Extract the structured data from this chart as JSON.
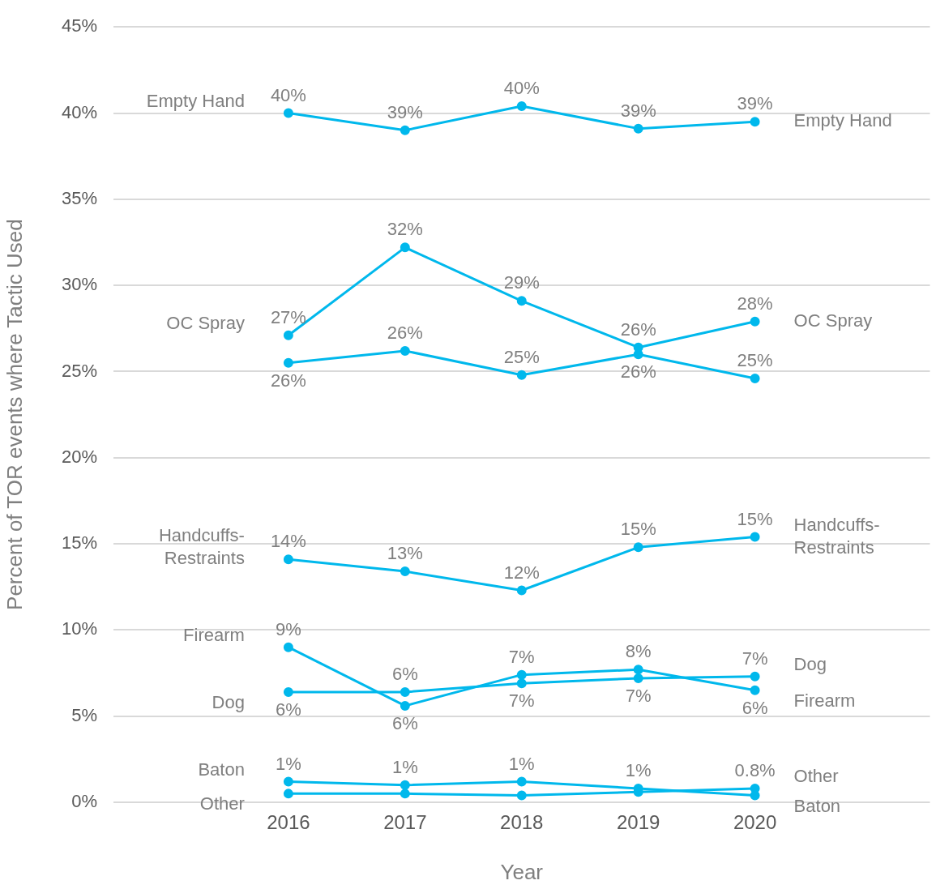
{
  "chart_data": {
    "type": "line",
    "xlabel": "Year",
    "ylabel": "Percent of TOR events where Tactic Used",
    "x": [
      2016,
      2017,
      2018,
      2019,
      2020
    ],
    "xlim": [
      2014.5,
      2021.5
    ],
    "xticks": [
      2016,
      2017,
      2018,
      2019,
      2020
    ],
    "ylim": [
      0,
      45
    ],
    "yticks": [
      {
        "value": 0,
        "label": "0%"
      },
      {
        "value": 5,
        "label": "5%"
      },
      {
        "value": 10,
        "label": "10%"
      },
      {
        "value": 15,
        "label": "15%"
      },
      {
        "value": 20,
        "label": "20%"
      },
      {
        "value": 25,
        "label": "25%"
      },
      {
        "value": 30,
        "label": "30%"
      },
      {
        "value": 35,
        "label": "35%"
      },
      {
        "value": 40,
        "label": "40%"
      },
      {
        "value": 45,
        "label": "45%"
      }
    ],
    "grid": "y",
    "legend": false,
    "marker": "circle",
    "line_style": "solid",
    "series": [
      {
        "name": "Empty Hand",
        "color": "#00b8ec",
        "values": [
          40.0,
          39.0,
          40.4,
          39.1,
          39.5
        ],
        "value_labels": [
          "40%",
          "39%",
          "40%",
          "39%",
          "39%"
        ]
      },
      {
        "name": "OC Spray",
        "color": "#00b8ec",
        "values": [
          27.1,
          32.2,
          29.1,
          26.4,
          27.9
        ],
        "value_labels": [
          "27%",
          "32%",
          "29%",
          "26%",
          "28%"
        ]
      },
      {
        "color": "#00b8ec",
        "values": [
          25.5,
          26.2,
          24.8,
          26.0,
          24.6
        ],
        "value_labels": [
          "26%",
          "26%",
          "25%",
          "26%",
          "25%"
        ]
      },
      {
        "name": "Handcuffs-Restraints",
        "color": "#00b8ec",
        "values": [
          14.1,
          13.4,
          12.3,
          14.8,
          15.4
        ],
        "value_labels": [
          "14%",
          "13%",
          "12%",
          "15%",
          "15%"
        ]
      },
      {
        "name": "Firearm",
        "color": "#00b8ec",
        "values": [
          9.0,
          5.6,
          7.4,
          7.7,
          6.5
        ],
        "value_labels": [
          "9%",
          "6%",
          "7%",
          "8%",
          "6%"
        ]
      },
      {
        "name": "Dog",
        "color": "#00b8ec",
        "values": [
          6.4,
          6.4,
          6.9,
          7.2,
          7.3
        ],
        "value_labels": [
          "6%",
          "6%",
          "7%",
          "7%",
          "7%"
        ]
      },
      {
        "name": "Baton",
        "color": "#00b8ec",
        "values": [
          1.2,
          1.0,
          1.2,
          0.8,
          0.4
        ],
        "value_labels": [
          "1%",
          "1%",
          "1%",
          "1%",
          null
        ]
      },
      {
        "name": "Other",
        "color": "#00b8ec",
        "values": [
          0.5,
          0.5,
          0.4,
          0.6,
          0.8
        ],
        "value_labels": [
          null,
          null,
          null,
          null,
          "0.8%"
        ]
      }
    ]
  }
}
